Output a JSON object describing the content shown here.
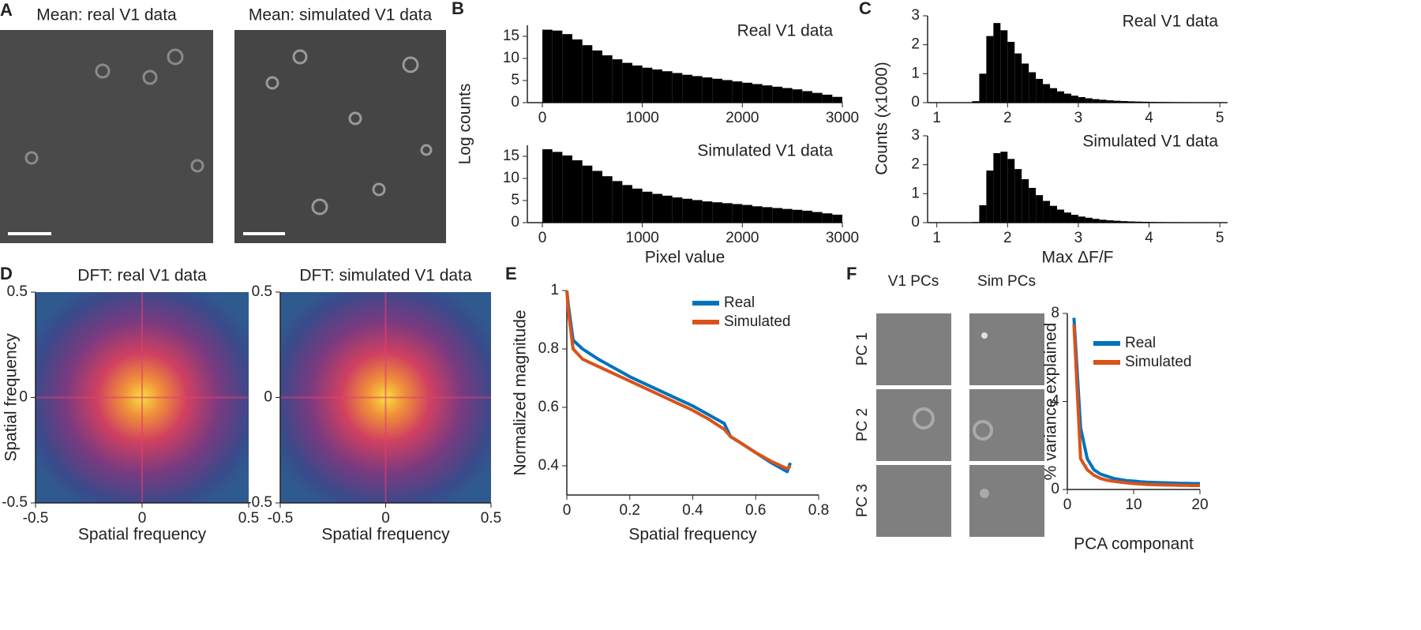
{
  "figure": {
    "panel_labels": [
      "A",
      "B",
      "C",
      "D",
      "E",
      "F"
    ],
    "mean_images": {
      "titles": [
        "Mean: real V1 data",
        "Mean: simulated V1 data"
      ]
    },
    "pc_images": {
      "column_titles": [
        "V1 PCs",
        "Sim PCs"
      ],
      "row_labels": [
        "PC 1",
        "PC 2",
        "PC 3"
      ]
    }
  },
  "chart_data": [
    {
      "type": "histogram",
      "annotation": "Real V1 data",
      "ylabel": "Log counts",
      "color": "#000000",
      "bins": [
        0,
        100,
        200,
        300,
        400,
        500,
        600,
        700,
        800,
        900,
        1000,
        1100,
        1200,
        1300,
        1400,
        1500,
        1600,
        1700,
        1800,
        1900,
        2000,
        2100,
        2200,
        2300,
        2400,
        2500,
        2600,
        2700,
        2800,
        2900,
        3000
      ],
      "values": [
        16.5,
        16.3,
        15.5,
        14.3,
        13,
        11.8,
        10.7,
        9.8,
        9.0,
        8.4,
        7.9,
        7.5,
        7.1,
        6.7,
        6.3,
        6.0,
        5.7,
        5.4,
        5.1,
        4.8,
        4.5,
        4.2,
        3.9,
        3.6,
        3.3,
        3.0,
        2.6,
        2.2,
        1.8,
        1.3
      ],
      "xlim": [
        -150,
        3000
      ],
      "xticks": [
        0,
        1000,
        2000,
        3000
      ],
      "ylim": [
        0,
        17.5
      ],
      "yticks": [
        0,
        5,
        10,
        15
      ]
    },
    {
      "type": "histogram",
      "annotation": "Simulated V1 data",
      "xlabel": "Pixel value",
      "color": "#000000",
      "bins": [
        0,
        100,
        200,
        300,
        400,
        500,
        600,
        700,
        800,
        900,
        1000,
        1100,
        1200,
        1300,
        1400,
        1500,
        1600,
        1700,
        1800,
        1900,
        2000,
        2100,
        2200,
        2300,
        2400,
        2500,
        2600,
        2700,
        2800,
        2900,
        3000
      ],
      "values": [
        16.6,
        16.0,
        15.2,
        14.1,
        12.9,
        11.7,
        10.5,
        9.4,
        8.5,
        7.7,
        7.0,
        6.5,
        6.1,
        5.7,
        5.4,
        5.1,
        4.8,
        4.6,
        4.4,
        4.2,
        4.0,
        3.7,
        3.5,
        3.3,
        3.1,
        2.9,
        2.7,
        2.4,
        2.1,
        1.8
      ],
      "xlim": [
        -150,
        3000
      ],
      "xticks": [
        0,
        1000,
        2000,
        3000
      ],
      "ylim": [
        0,
        17.5
      ],
      "yticks": [
        0,
        5,
        10,
        15
      ]
    },
    {
      "type": "histogram",
      "annotation": "Real V1 data",
      "ylabel": "Counts (x1000)",
      "color": "#000000",
      "bins": [
        1.5,
        1.6,
        1.7,
        1.8,
        1.9,
        2.0,
        2.1,
        2.2,
        2.3,
        2.4,
        2.5,
        2.6,
        2.7,
        2.8,
        2.9,
        3.0,
        3.1,
        3.2,
        3.3,
        3.4,
        3.5,
        3.6,
        3.7,
        3.8,
        3.9,
        4.0,
        4.1,
        4.2,
        4.3,
        4.4,
        4.5,
        4.6,
        4.7,
        4.8,
        4.9,
        5.0,
        5.1
      ],
      "values": [
        0.05,
        1.0,
        2.3,
        2.75,
        2.5,
        2.1,
        1.7,
        1.35,
        1.05,
        0.82,
        0.64,
        0.5,
        0.39,
        0.31,
        0.24,
        0.19,
        0.15,
        0.12,
        0.1,
        0.08,
        0.065,
        0.055,
        0.045,
        0.038,
        0.032,
        0.027,
        0.023,
        0.02,
        0.017,
        0.015,
        0.013,
        0.011,
        0.01,
        0.009,
        0.008,
        0.007
      ],
      "xlim": [
        0.87,
        5.11
      ],
      "xticks": [
        1,
        2,
        3,
        4,
        5
      ],
      "ylim": [
        0,
        3
      ],
      "yticks": [
        0,
        1,
        2,
        3
      ]
    },
    {
      "type": "histogram",
      "annotation": "Simulated V1 data",
      "xlabel": "Max ΔF/F",
      "color": "#000000",
      "bins": [
        1.5,
        1.6,
        1.7,
        1.8,
        1.9,
        2.0,
        2.1,
        2.2,
        2.3,
        2.4,
        2.5,
        2.6,
        2.7,
        2.8,
        2.9,
        3.0,
        3.1,
        3.2,
        3.3,
        3.4,
        3.5,
        3.6,
        3.7,
        3.8,
        3.9,
        4.0,
        4.1,
        4.2,
        4.3,
        4.4,
        4.5,
        4.6,
        4.7,
        4.8,
        4.9,
        5.0,
        5.1
      ],
      "values": [
        0.02,
        0.6,
        1.8,
        2.4,
        2.45,
        2.2,
        1.85,
        1.5,
        1.2,
        0.95,
        0.75,
        0.58,
        0.45,
        0.35,
        0.27,
        0.21,
        0.17,
        0.13,
        0.1,
        0.08,
        0.065,
        0.05,
        0.04,
        0.033,
        0.027,
        0.022,
        0.018,
        0.015,
        0.012,
        0.01,
        0.008,
        0.007,
        0.006,
        0.005,
        0.004,
        0.003
      ],
      "xlim": [
        0.87,
        5.11
      ],
      "xticks": [
        1,
        2,
        3,
        4,
        5
      ],
      "ylim": [
        0,
        3
      ],
      "yticks": [
        0,
        1,
        2,
        3
      ]
    },
    {
      "type": "heatmap",
      "title": "DFT: real V1 data",
      "xlabel": "Spatial frequency",
      "ylabel": "Spatial frequency",
      "xlim": [
        -0.5,
        0.5
      ],
      "ylim": [
        -0.5,
        0.5
      ],
      "xticks": [
        -0.5,
        0,
        0.5
      ],
      "yticks": [
        -0.5,
        0,
        0.5
      ]
    },
    {
      "type": "heatmap",
      "title": "DFT: simulated V1 data",
      "xlabel": "Spatial frequency",
      "xlim": [
        -0.5,
        0.5
      ],
      "ylim": [
        -0.5,
        0.5
      ],
      "xticks": [
        -0.5,
        0,
        0.5
      ],
      "yticks": [
        -0.5,
        0,
        0.5
      ]
    },
    {
      "type": "line",
      "xlabel": "Spatial frequency",
      "ylabel": "Normalized magnitude",
      "legend": "upper right",
      "x": [
        0,
        0.005,
        0.02,
        0.05,
        0.1,
        0.15,
        0.2,
        0.25,
        0.3,
        0.35,
        0.4,
        0.45,
        0.5,
        0.52,
        0.55,
        0.6,
        0.65,
        0.7,
        0.71
      ],
      "series": [
        {
          "name": "Real",
          "color": "#0072bd",
          "values": [
            1.0,
            0.95,
            0.83,
            0.8,
            0.765,
            0.735,
            0.705,
            0.68,
            0.655,
            0.63,
            0.605,
            0.575,
            0.545,
            0.5,
            0.48,
            0.445,
            0.41,
            0.38,
            0.41
          ]
        },
        {
          "name": "Simulated",
          "color": "#d95319",
          "values": [
            1.0,
            0.93,
            0.8,
            0.765,
            0.74,
            0.715,
            0.69,
            0.665,
            0.64,
            0.615,
            0.59,
            0.56,
            0.525,
            0.5,
            0.48,
            0.445,
            0.415,
            0.39,
            0.4
          ]
        }
      ],
      "xlim": [
        0,
        0.8
      ],
      "xticks": [
        0,
        0.2,
        0.4,
        0.6,
        0.8
      ],
      "ylim": [
        0.3,
        1.0
      ],
      "yticks": [
        0.4,
        0.6,
        0.8,
        1
      ]
    },
    {
      "type": "line",
      "xlabel": "PCA componant",
      "ylabel": "% variance explained",
      "legend": "upper right",
      "x": [
        1,
        2,
        3,
        4,
        5,
        6,
        7,
        8,
        9,
        10,
        11,
        12,
        13,
        14,
        15,
        16,
        17,
        18,
        19,
        20
      ],
      "series": [
        {
          "name": "Real",
          "color": "#0072bd",
          "values": [
            7.8,
            2.8,
            1.4,
            0.9,
            0.7,
            0.6,
            0.5,
            0.45,
            0.4,
            0.38,
            0.35,
            0.33,
            0.32,
            0.31,
            0.3,
            0.29,
            0.28,
            0.28,
            0.27,
            0.27
          ]
        },
        {
          "name": "Simulated",
          "color": "#d95319",
          "values": [
            7.5,
            1.4,
            0.9,
            0.65,
            0.5,
            0.42,
            0.37,
            0.33,
            0.3,
            0.27,
            0.25,
            0.23,
            0.22,
            0.21,
            0.2,
            0.2,
            0.19,
            0.19,
            0.18,
            0.18
          ]
        }
      ],
      "xlim": [
        0,
        20
      ],
      "xticks": [
        0,
        10,
        20
      ],
      "ylim": [
        0,
        8
      ],
      "yticks": [
        0,
        4,
        8
      ]
    }
  ]
}
